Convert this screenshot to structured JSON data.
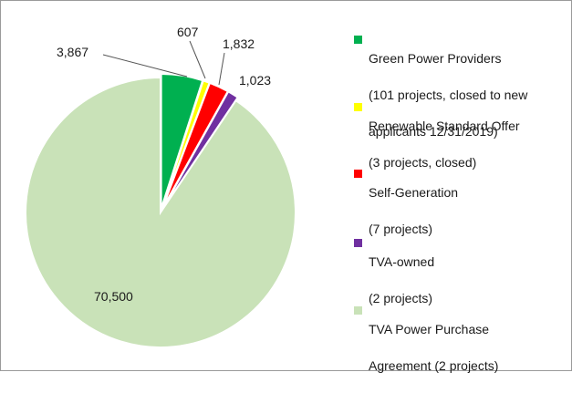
{
  "chart_data": {
    "type": "pie",
    "slices": [
      {
        "label": "Green Power Providers (101 projects, closed to new applicants 12/31/2019)",
        "value": 3867,
        "display": "3,867",
        "color": "#00b050"
      },
      {
        "label": "Renewable Standard Offer (3 projects, closed)",
        "value": 607,
        "display": "607",
        "color": "#ffff00"
      },
      {
        "label": "Self-Generation (7 projects)",
        "value": 1832,
        "display": "1,832",
        "color": "#ff0000"
      },
      {
        "label": "TVA-owned (2 projects)",
        "value": 1023,
        "display": "1,023",
        "color": "#7030a0"
      },
      {
        "label": "TVA Power Purchase Agreement (2 projects)",
        "value": 70500,
        "display": "70,500",
        "color": "#c9e2b8"
      }
    ],
    "exploded_slices": [
      "Green Power Providers",
      "Renewable Standard Offer",
      "Self-Generation",
      "TVA-owned"
    ],
    "legend_position": "right"
  },
  "legend": [
    {
      "line1": "Green Power Providers",
      "line2": "(101 projects, closed to new",
      "line3": "applicants 12/31/2019)"
    },
    {
      "line1": "Renewable Standard Offer",
      "line2": "(3 projects, closed)"
    },
    {
      "line1": "Self-Generation",
      "line2": "(7 projects)"
    },
    {
      "line1": "TVA-owned",
      "line2": "(2 projects)"
    },
    {
      "line1": "TVA Power Purchase",
      "line2": "Agreement (2 projects)"
    }
  ]
}
